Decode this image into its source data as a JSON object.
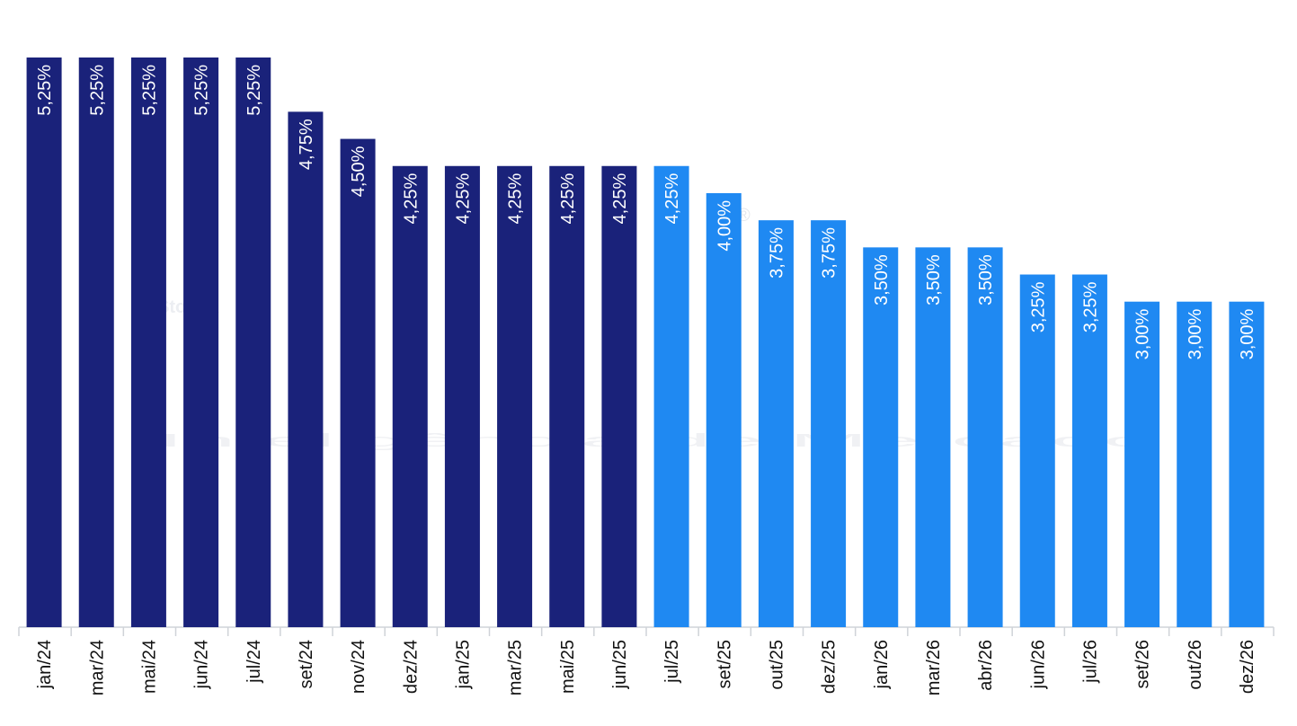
{
  "chart_data": {
    "type": "bar",
    "watermark": [
      "StoneX",
      "®",
      "Inteligência de Mercado"
    ],
    "categories": [
      "jan/24",
      "mar/24",
      "mai/24",
      "jun/24",
      "jul/24",
      "set/24",
      "nov/24",
      "dez/24",
      "jan/25",
      "mar/25",
      "mai/25",
      "jun/25",
      "jul/25",
      "set/25",
      "out/25",
      "dez/25",
      "jan/26",
      "mar/26",
      "abr/26",
      "jun/26",
      "jul/26",
      "set/26",
      "out/26",
      "dez/26"
    ],
    "values": [
      5.25,
      5.25,
      5.25,
      5.25,
      5.25,
      4.75,
      4.5,
      4.25,
      4.25,
      4.25,
      4.25,
      4.25,
      4.25,
      4.0,
      3.75,
      3.75,
      3.5,
      3.5,
      3.5,
      3.25,
      3.25,
      3.0,
      3.0,
      3.0
    ],
    "value_labels": [
      "5,25%",
      "5,25%",
      "5,25%",
      "5,25%",
      "5,25%",
      "4,75%",
      "4,50%",
      "4,25%",
      "4,25%",
      "4,25%",
      "4,25%",
      "4,25%",
      "4,25%",
      "4,00%",
      "3,75%",
      "3,75%",
      "3,50%",
      "3,50%",
      "3,50%",
      "3,25%",
      "3,25%",
      "3,00%",
      "3,00%",
      "3,00%"
    ],
    "colors": [
      "#1a227a",
      "#1a227a",
      "#1a227a",
      "#1a227a",
      "#1a227a",
      "#1a227a",
      "#1a227a",
      "#1a227a",
      "#1a227a",
      "#1a227a",
      "#1a227a",
      "#1a227a",
      "#1f89f2",
      "#1f89f2",
      "#1f89f2",
      "#1f89f2",
      "#1f89f2",
      "#1f89f2",
      "#1f89f2",
      "#1f89f2",
      "#1f89f2",
      "#1f89f2",
      "#1f89f2",
      "#1f89f2"
    ],
    "ylim": [
      0,
      5.25
    ]
  }
}
